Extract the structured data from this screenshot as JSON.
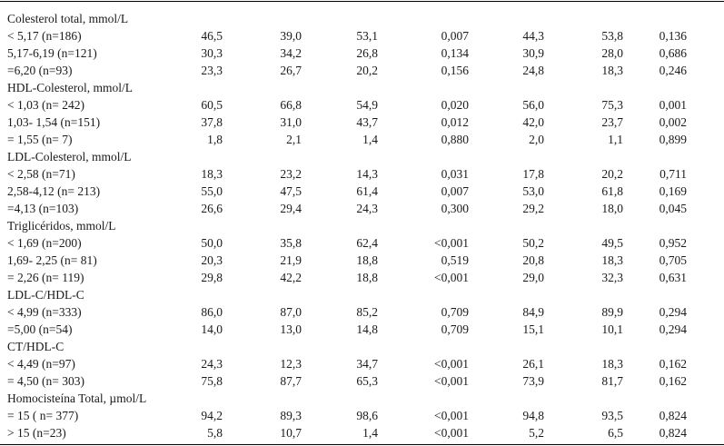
{
  "sections": [
    {
      "header": "Colesterol total, mmol/L",
      "rows": [
        {
          "label": "< 5,17 (n=186)",
          "values": [
            "46,5",
            "39,0",
            "53,1",
            "0,007",
            "44,3",
            "53,8",
            "0,136"
          ]
        },
        {
          "label": "5,17-6,19 (n=121)",
          "values": [
            "30,3",
            "34,2",
            "26,8",
            "0,134",
            "30,9",
            "28,0",
            "0,686"
          ]
        },
        {
          "label": "=6,20 (n=93)",
          "values": [
            "23,3",
            "26,7",
            "20,2",
            "0,156",
            "24,8",
            "18,3",
            "0,246"
          ]
        }
      ]
    },
    {
      "header": "HDL-Colesterol, mmol/L",
      "rows": [
        {
          "label": "< 1,03 (n= 242)",
          "values": [
            "60,5",
            "66,8",
            "54,9",
            "0,020",
            "56,0",
            "75,3",
            "0,001"
          ]
        },
        {
          "label": "1,03- 1,54 (n=151)",
          "values": [
            "37,8",
            "31,0",
            "43,7",
            "0,012",
            "42,0",
            "23,7",
            "0,002"
          ]
        },
        {
          "label": "= 1,55 (n= 7)",
          "values": [
            "1,8",
            "2,1",
            "1,4",
            "0,880",
            "2,0",
            "1,1",
            "0,899"
          ]
        }
      ]
    },
    {
      "header": "LDL-Colesterol, mmol/L",
      "rows": [
        {
          "label": "< 2,58 (n=71)",
          "values": [
            "18,3",
            "23,2",
            "14,3",
            "0,031",
            "17,8",
            "20,2",
            "0,711"
          ]
        },
        {
          "label": "2,58-4,12 (n= 213)",
          "values": [
            "55,0",
            "47,5",
            "61,4",
            "0,007",
            "53,0",
            "61,8",
            "0,169"
          ]
        },
        {
          "label": "=4,13 (n=103)",
          "values": [
            "26,6",
            "29,4",
            "24,3",
            "0,300",
            "29,2",
            "18,0",
            "0,045"
          ]
        }
      ]
    },
    {
      "header": "Triglicéridos, mmol/L",
      "rows": [
        {
          "label": "< 1,69 (n=200)",
          "values": [
            "50,0",
            "35,8",
            "62,4",
            "<0,001",
            "50,2",
            "49,5",
            "0,952"
          ]
        },
        {
          "label": "1,69- 2,25 (n= 81)",
          "values": [
            "20,3",
            "21,9",
            "18,8",
            "0,519",
            "20,8",
            "18,3",
            "0,705"
          ]
        },
        {
          "label": "= 2,26 (n= 119)",
          "values": [
            "29,8",
            "42,2",
            "18,8",
            "<0,001",
            "29,0",
            "32,3",
            "0,631"
          ]
        }
      ]
    },
    {
      "header": "LDL-C/HDL-C",
      "rows": [
        {
          "label": "< 4,99 (n=333)",
          "values": [
            "86,0",
            "87,0",
            "85,2",
            "0,709",
            "84,9",
            "89,9",
            "0,294"
          ]
        },
        {
          "label": "=5,00 (n=54)",
          "values": [
            "14,0",
            "13,0",
            "14,8",
            "0,709",
            "15,1",
            "10,1",
            "0,294"
          ]
        }
      ]
    },
    {
      "header": "CT/HDL-C",
      "rows": [
        {
          "label": "< 4,49 (n=97)",
          "values": [
            "24,3",
            "12,3",
            "34,7",
            "<0,001",
            "26,1",
            "18,3",
            "0,162"
          ]
        },
        {
          "label": "= 4,50 (n= 303)",
          "values": [
            "75,8",
            "87,7",
            "65,3",
            "<0,001",
            "73,9",
            "81,7",
            "0,162"
          ]
        }
      ]
    },
    {
      "header": "Homocisteína Total, µmol/L",
      "rows": [
        {
          "label": "= 15 ( n= 377)",
          "values": [
            "94,2",
            "89,3",
            "98,6",
            "<0,001",
            "94,8",
            "93,5",
            "0,824"
          ]
        },
        {
          "label": "> 15 (n=23)",
          "values": [
            "5,8",
            "10,7",
            "1,4",
            "<0,001",
            "5,2",
            "6,5",
            "0,824"
          ]
        }
      ]
    }
  ]
}
